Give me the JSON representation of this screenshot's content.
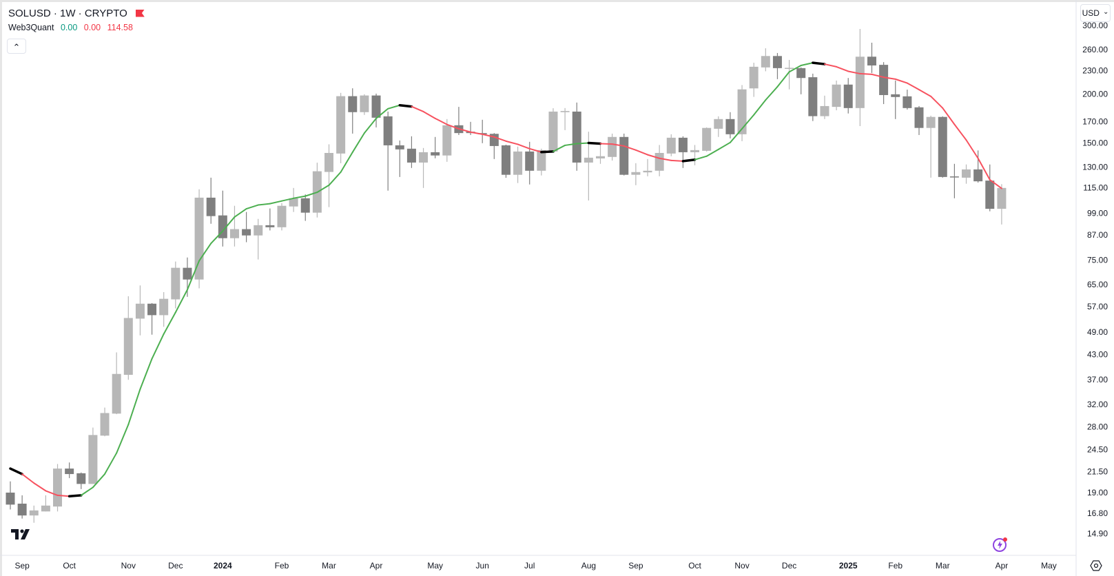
{
  "header": {
    "symbol_title": "SOLUSD · 1W · CRYPTO",
    "flag_color": "#f23645"
  },
  "indicator": {
    "name": "Web3Quant",
    "v1": "0.00",
    "v2": "0.00",
    "v3": "114.58",
    "v1_color": "#089981",
    "v2_color": "#f23645",
    "v3_color": "#f23645"
  },
  "controls": {
    "collapse": "⌃",
    "currency": "USD",
    "currency_chevron": "⌄"
  },
  "colors": {
    "up": "#b7b7b7",
    "down": "#7f7f7f",
    "rising": "#4caf50",
    "falling": "#f7525f",
    "turn": "#000000"
  },
  "chart_data": {
    "type": "candlestick",
    "title": "SOLUSD · 1W · CRYPTO",
    "scale": "log",
    "ylim": [
      14.9,
      300
    ],
    "y_ticks": [
      "300.00",
      "260.00",
      "230.00",
      "200.00",
      "170.00",
      "150.00",
      "130.00",
      "115.00",
      "99.00",
      "87.00",
      "75.00",
      "65.00",
      "57.00",
      "49.00",
      "43.00",
      "37.00",
      "32.00",
      "28.00",
      "24.50",
      "21.50",
      "19.00",
      "16.80",
      "14.90"
    ],
    "x_ticks": [
      {
        "label": "Sep",
        "bar": 2
      },
      {
        "label": "Oct",
        "bar": 6
      },
      {
        "label": "Nov",
        "bar": 11
      },
      {
        "label": "Dec",
        "bar": 15
      },
      {
        "label": "2024",
        "bar": 19,
        "bold": true
      },
      {
        "label": "Feb",
        "bar": 24
      },
      {
        "label": "Mar",
        "bar": 28
      },
      {
        "label": "Apr",
        "bar": 32
      },
      {
        "label": "May",
        "bar": 37
      },
      {
        "label": "Jun",
        "bar": 41
      },
      {
        "label": "Jul",
        "bar": 45
      },
      {
        "label": "Aug",
        "bar": 50
      },
      {
        "label": "Sep",
        "bar": 54
      },
      {
        "label": "Oct",
        "bar": 59
      },
      {
        "label": "Nov",
        "bar": 63
      },
      {
        "label": "Dec",
        "bar": 67
      },
      {
        "label": "2025",
        "bar": 72,
        "bold": true
      },
      {
        "label": "Feb",
        "bar": 76
      },
      {
        "label": "Mar",
        "bar": 80
      },
      {
        "label": "Apr",
        "bar": 85
      },
      {
        "label": "May",
        "bar": 89
      }
    ],
    "ohlc_fields": [
      "open",
      "high",
      "low",
      "close"
    ],
    "candles": [
      [
        19.0,
        20.3,
        17.2,
        17.7
      ],
      [
        17.8,
        18.7,
        16.3,
        16.6
      ],
      [
        16.6,
        17.6,
        15.9,
        17.1
      ],
      [
        17.0,
        18.7,
        17.0,
        17.6
      ],
      [
        17.5,
        22.5,
        17.0,
        21.9
      ],
      [
        21.9,
        22.7,
        20.7,
        21.2
      ],
      [
        21.3,
        21.4,
        19.4,
        20.0
      ],
      [
        20.0,
        27.9,
        20.0,
        26.7
      ],
      [
        26.6,
        31.4,
        26.5,
        30.4
      ],
      [
        30.3,
        43.5,
        30.2,
        38.3
      ],
      [
        38.1,
        60.6,
        37.0,
        53.3
      ],
      [
        53.1,
        64.6,
        48.1,
        58.0
      ],
      [
        58.0,
        58.2,
        48.3,
        54.2
      ],
      [
        54.2,
        62.1,
        50.6,
        59.7
      ],
      [
        59.5,
        74.4,
        56.4,
        71.7
      ],
      [
        71.7,
        76.2,
        60.4,
        66.9
      ],
      [
        66.9,
        114.0,
        63.5,
        108.5
      ],
      [
        108.5,
        122.1,
        93.0,
        97.3
      ],
      [
        97.7,
        113.1,
        81.3,
        85.4
      ],
      [
        85.4,
        103.4,
        81.3,
        90.1
      ],
      [
        90.1,
        99.7,
        83.4,
        86.8
      ],
      [
        86.8,
        95.7,
        75.3,
        92.2
      ],
      [
        92.2,
        101.8,
        89.4,
        91.1
      ],
      [
        91.1,
        105.1,
        89.4,
        103.4
      ],
      [
        103.0,
        114.9,
        99.7,
        108.1
      ],
      [
        108.1,
        110.6,
        94.6,
        99.3
      ],
      [
        99.3,
        133.4,
        96.5,
        126.8
      ],
      [
        126.3,
        148.7,
        102.6,
        141.3
      ],
      [
        140.8,
        201.5,
        133.0,
        197.6
      ],
      [
        197.6,
        207.0,
        158.4,
        179.8
      ],
      [
        179.8,
        199.8,
        176.9,
        198.4
      ],
      [
        198.4,
        200.6,
        164.3,
        174.0
      ],
      [
        175.4,
        180.4,
        113.1,
        147.8
      ],
      [
        147.8,
        152.1,
        122.6,
        144.3
      ],
      [
        144.9,
        155.9,
        129.3,
        133.5
      ],
      [
        133.5,
        145.5,
        114.9,
        141.9
      ],
      [
        141.9,
        155.3,
        136.9,
        139.2
      ],
      [
        139.2,
        172.6,
        134.1,
        166.4
      ],
      [
        166.4,
        185.5,
        157.1,
        158.9
      ],
      [
        160.2,
        169.8,
        157.1,
        158.9
      ],
      [
        158.9,
        171.9,
        149.7,
        157.8
      ],
      [
        158.2,
        158.9,
        136.3,
        147.2
      ],
      [
        147.8,
        148.4,
        122.0,
        124.2
      ],
      [
        124.2,
        146.7,
        118.3,
        142.5
      ],
      [
        142.5,
        150.9,
        117.3,
        127.2
      ],
      [
        127.2,
        144.9,
        123.7,
        143.7
      ],
      [
        142.5,
        184.0,
        142.0,
        180.4
      ],
      [
        179.8,
        184.2,
        161.7,
        181.0
      ],
      [
        180.4,
        190.3,
        127.2,
        133.5
      ],
      [
        133.5,
        160.2,
        106.7,
        137.4
      ],
      [
        136.8,
        148.7,
        132.5,
        138.6
      ],
      [
        138.0,
        158.4,
        135.1,
        155.3
      ],
      [
        155.3,
        158.4,
        123.7,
        124.2
      ],
      [
        124.2,
        133.0,
        116.8,
        126.2
      ],
      [
        126.0,
        136.3,
        123.1,
        127.2
      ],
      [
        127.2,
        148.1,
        123.1,
        141.3
      ],
      [
        140.8,
        157.8,
        138.6,
        154.6
      ],
      [
        154.6,
        155.9,
        129.3,
        141.9
      ],
      [
        141.9,
        148.1,
        131.4,
        143.7
      ],
      [
        143.1,
        164.3,
        142.5,
        163.8
      ],
      [
        163.0,
        175.4,
        155.3,
        172.6
      ],
      [
        172.6,
        179.8,
        154.0,
        157.8
      ],
      [
        157.8,
        211.0,
        151.5,
        205.7
      ],
      [
        206.9,
        240.7,
        196.8,
        235.1
      ],
      [
        234.2,
        262.2,
        228.9,
        250.5
      ],
      [
        250.5,
        255.0,
        218.5,
        233.2
      ],
      [
        232.2,
        244.8,
        205.7,
        233.6
      ],
      [
        233.2,
        234.2,
        199.8,
        220.0
      ],
      [
        221.0,
        225.7,
        170.6,
        175.6
      ],
      [
        175.6,
        198.2,
        172.6,
        186.4
      ],
      [
        185.5,
        216.7,
        181.8,
        211.6
      ],
      [
        211.6,
        220.0,
        178.4,
        184.2
      ],
      [
        184.2,
        294.0,
        165.6,
        249.5
      ],
      [
        249.5,
        271.0,
        226.6,
        236.9
      ],
      [
        237.8,
        241.6,
        188.6,
        198.9
      ],
      [
        199.8,
        216.7,
        172.6,
        196.6
      ],
      [
        197.4,
        205.4,
        182.6,
        184.2
      ],
      [
        185.0,
        186.4,
        157.1,
        163.8
      ],
      [
        163.8,
        176.1,
        122.1,
        174.8
      ],
      [
        174.8,
        175.4,
        122.1,
        122.6
      ],
      [
        123.0,
        132.5,
        108.1,
        122.6
      ],
      [
        122.1,
        132.0,
        117.8,
        128.2
      ],
      [
        128.2,
        143.4,
        118.6,
        119.5
      ],
      [
        120.0,
        132.0,
        100.1,
        101.6
      ],
      [
        101.6,
        117.5,
        92.6,
        114.9
      ]
    ],
    "series": [
      {
        "name": "Web3Quant",
        "values": [
          21.9,
          21.2,
          20.1,
          19.2,
          18.7,
          18.6,
          18.7,
          19.6,
          21.2,
          24.0,
          28.4,
          35.0,
          41.9,
          48.5,
          55.1,
          63.0,
          74.7,
          82.8,
          89.1,
          96.8,
          101.6,
          103.9,
          104.7,
          106.4,
          108.1,
          109.5,
          112.0,
          116.8,
          126.2,
          141.9,
          158.9,
          173.3,
          183.5,
          187.3,
          185.9,
          180.4,
          173.3,
          167.2,
          163.0,
          159.8,
          157.8,
          155.3,
          151.5,
          148.7,
          144.9,
          142.0,
          142.5,
          147.8,
          149.3,
          149.9,
          149.3,
          148.9,
          147.2,
          143.7,
          139.8,
          136.9,
          135.2,
          134.6,
          135.8,
          138.6,
          144.3,
          150.3,
          163.0,
          176.9,
          193.2,
          208.9,
          228.0,
          236.9,
          240.7,
          238.8,
          235.1,
          228.9,
          225.7,
          224.8,
          221.0,
          218.5,
          213.5,
          205.4,
          197.4,
          184.2,
          167.3,
          152.5,
          136.9,
          120.6,
          114.58
        ]
      }
    ]
  }
}
